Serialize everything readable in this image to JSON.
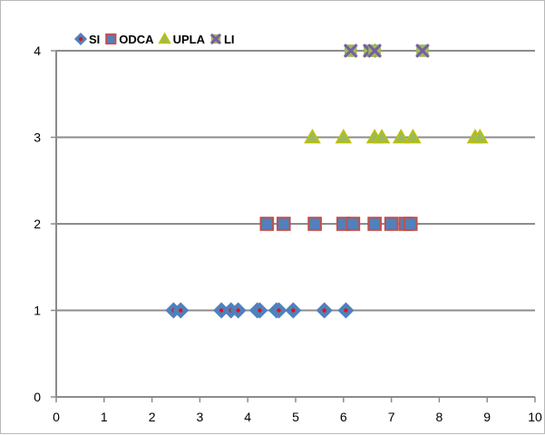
{
  "chart_data": {
    "type": "scatter",
    "title": "",
    "xlabel": "",
    "ylabel": "",
    "xlim": [
      0,
      10
    ],
    "ylim": [
      0,
      4
    ],
    "x_ticks": [
      "0",
      "1",
      "2",
      "3",
      "4",
      "5",
      "6",
      "7",
      "8",
      "9",
      "10"
    ],
    "y_ticks": [
      "0",
      "1",
      "2",
      "3",
      "4"
    ],
    "grid": "horizontal major gridlines",
    "legend": "top-left",
    "series": [
      {
        "name": "SI",
        "marker": "diamond",
        "fill": "#4f81bd",
        "edge": "#4f81bd",
        "center": "#e3111a",
        "x": [
          2.45,
          2.6,
          3.45,
          3.65,
          3.8,
          4.2,
          4.25,
          4.6,
          4.65,
          4.95,
          5.6,
          6.05
        ],
        "y": [
          1,
          1,
          1,
          1,
          1,
          1,
          1,
          1,
          1,
          1,
          1,
          1
        ]
      },
      {
        "name": "ODCA",
        "marker": "square",
        "fill": "#4f81bd",
        "edge": "#c0504d",
        "x": [
          4.4,
          4.75,
          5.4,
          6.0,
          6.2,
          6.65,
          7.0,
          7.3,
          7.4
        ],
        "y": [
          2,
          2,
          2,
          2,
          2,
          2,
          2,
          2,
          2
        ]
      },
      {
        "name": "UPLA",
        "marker": "triangle",
        "fill": "#9bbb59",
        "edge": "#c0c000",
        "x": [
          5.35,
          6.0,
          6.65,
          6.8,
          7.2,
          7.45,
          8.75,
          8.85
        ],
        "y": [
          3,
          3,
          3,
          3,
          3,
          3,
          3,
          3
        ]
      },
      {
        "name": "LI",
        "marker": "x-square",
        "fill": "#9bbb59",
        "edge": "#7a5ca4",
        "x": [
          6.15,
          6.55,
          6.65,
          7.65
        ],
        "y": [
          4,
          4,
          4,
          4
        ]
      }
    ]
  }
}
